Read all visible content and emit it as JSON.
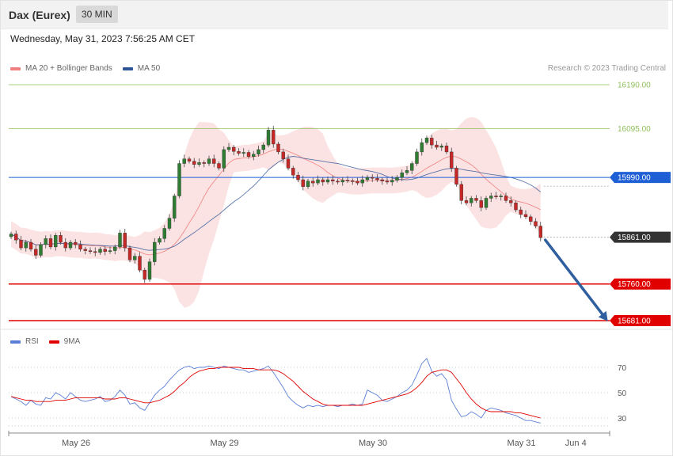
{
  "header": {
    "title": "Dax (Eurex)",
    "timeframe": "30 MIN"
  },
  "datetime": "Wednesday, May 31, 2023 7:56:25 AM CET",
  "copyright": "Research © 2023 Trading Central",
  "colors": {
    "bollinger": "#f08080",
    "ma50": "#2f5597",
    "resistance": "#8fbf5a",
    "pivot": "#1f5fd6",
    "support": "#e00000",
    "up_candle": "#2e7d32",
    "down_candle": "#c62828",
    "rsi": "#5b7fd6",
    "rsi_ma": "#e00000",
    "arrow": "#2f5f9f"
  },
  "legend": [
    {
      "label": "MA 20 + Bollinger Bands",
      "color": "#f08080"
    },
    {
      "label": "MA 50",
      "color": "#2f5597"
    }
  ],
  "rsi_legend": [
    {
      "label": "RSI",
      "color": "#5b7fd6"
    },
    {
      "label": "9MA",
      "color": "#e00000"
    }
  ],
  "chart_data": {
    "type": "candlestick",
    "price_range": [
      15660,
      16210
    ],
    "current_price": 15861.0,
    "levels": [
      {
        "label": "16190.00",
        "value": 16190,
        "kind": "resistance"
      },
      {
        "label": "16095.00",
        "value": 16095,
        "kind": "resistance"
      },
      {
        "label": "15990.00",
        "value": 15990,
        "kind": "pivot"
      },
      {
        "label": "15861.00",
        "value": 15861,
        "kind": "current"
      },
      {
        "label": "15760.00",
        "value": 15760,
        "kind": "support"
      },
      {
        "label": "15681.00",
        "value": 15681,
        "kind": "support"
      }
    ],
    "forecast_arrow": {
      "from": 15855,
      "to": 15681
    },
    "x_labels": [
      "May 26",
      "May 29",
      "May 30",
      "May 31",
      "Jun 4"
    ],
    "x_label_index": [
      12,
      42,
      72,
      102,
      113
    ],
    "closes": [
      15868,
      15855,
      15838,
      15850,
      15835,
      15822,
      15845,
      15858,
      15840,
      15865,
      15850,
      15838,
      15850,
      15845,
      15835,
      15832,
      15830,
      15828,
      15835,
      15830,
      15832,
      15840,
      15870,
      15838,
      15812,
      15820,
      15790,
      15770,
      15808,
      15850,
      15858,
      15880,
      15902,
      15950,
      16020,
      16030,
      16025,
      16018,
      16022,
      16020,
      16030,
      16020,
      16010,
      16050,
      16055,
      16046,
      16042,
      16044,
      16035,
      16040,
      16050,
      16060,
      16092,
      16062,
      16045,
      16030,
      16010,
      15995,
      15985,
      15970,
      15982,
      15978,
      15985,
      15980,
      15985,
      15982,
      15980,
      15984,
      15983,
      15982,
      15978,
      15985,
      15990,
      15988,
      15985,
      15982,
      15980,
      15984,
      15990,
      16000,
      16005,
      16020,
      16045,
      16065,
      16075,
      16060,
      16055,
      16058,
      16045,
      16010,
      15975,
      15940,
      15935,
      15945,
      15940,
      15925,
      15945,
      15950,
      15948,
      15950,
      15940,
      15935,
      15920,
      15910,
      15905,
      15895,
      15885,
      15860
    ],
    "rsi_range": [
      20,
      80
    ],
    "rsi_levels": [
      70,
      50,
      30
    ],
    "rsi": [
      47,
      45,
      43,
      40,
      44,
      41,
      40,
      46,
      45,
      50,
      48,
      45,
      50,
      47,
      44,
      43,
      44,
      45,
      47,
      43,
      44,
      47,
      52,
      48,
      41,
      42,
      38,
      36,
      42,
      48,
      52,
      55,
      60,
      64,
      68,
      70,
      71,
      69,
      70,
      70,
      71,
      70,
      69,
      71,
      70,
      69,
      68,
      68,
      66,
      67,
      68,
      69,
      71,
      66,
      60,
      54,
      47,
      43,
      40,
      38,
      40,
      39,
      40,
      39,
      40,
      40,
      39,
      40,
      40,
      41,
      40,
      41,
      52,
      50,
      48,
      44,
      43,
      45,
      47,
      50,
      52,
      56,
      64,
      73,
      77,
      67,
      63,
      65,
      60,
      44,
      37,
      31,
      32,
      35,
      33,
      30,
      36,
      38,
      37,
      36,
      34,
      33,
      32,
      30,
      28,
      28,
      27,
      26
    ],
    "rsi_ma": [
      47,
      46,
      45,
      44,
      44,
      43,
      43,
      43,
      43,
      44,
      44,
      44,
      45,
      46,
      46,
      46,
      46,
      46,
      46,
      45,
      45,
      45,
      46,
      46,
      45,
      44,
      43,
      42,
      42,
      43,
      44,
      46,
      48,
      51,
      55,
      58,
      62,
      65,
      67,
      68,
      69,
      69,
      70,
      70,
      70,
      70,
      70,
      69,
      69,
      69,
      68,
      68,
      68,
      68,
      67,
      65,
      62,
      59,
      55,
      51,
      48,
      45,
      43,
      41,
      40,
      40,
      40,
      40,
      40,
      40,
      40,
      40,
      41,
      42,
      43,
      44,
      45,
      46,
      47,
      48,
      49,
      51,
      54,
      58,
      63,
      66,
      67,
      68,
      68,
      66,
      61,
      56,
      50,
      45,
      41,
      38,
      36,
      35,
      35,
      35,
      35,
      35,
      34,
      34,
      33,
      32,
      31,
      30
    ]
  }
}
